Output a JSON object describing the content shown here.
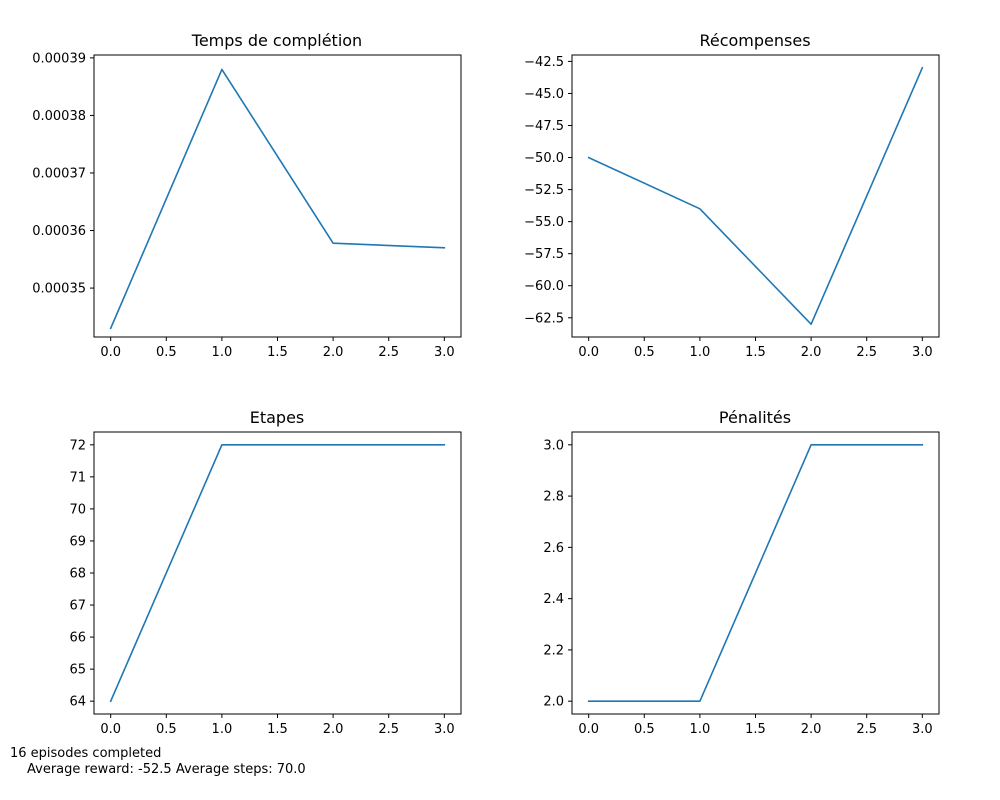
{
  "chart_data": [
    {
      "type": "line",
      "title": "Temps de complétion",
      "x": [
        0,
        1,
        2,
        3
      ],
      "series": [
        {
          "values": [
            0.000343,
            0.000388,
            0.0003578,
            0.000357
          ],
          "color": "#1f77b4"
        }
      ],
      "xlim": [
        -0.15,
        3.15
      ],
      "ylim": [
        0.0003415,
        0.0003905
      ],
      "xticks": [
        0.0,
        0.5,
        1.0,
        1.5,
        2.0,
        2.5,
        3.0
      ],
      "xtick_labels": [
        "0.0",
        "0.5",
        "1.0",
        "1.5",
        "2.0",
        "2.5",
        "3.0"
      ],
      "yticks": [
        0.00035,
        0.00036,
        0.00037,
        0.00038,
        0.00039
      ],
      "ytick_labels": [
        "0.00035",
        "0.00036",
        "0.00037",
        "0.00038",
        "0.00039"
      ],
      "grid": false
    },
    {
      "type": "line",
      "title": "Récompenses",
      "x": [
        0,
        1,
        2,
        3
      ],
      "series": [
        {
          "values": [
            -50,
            -54,
            -63,
            -43
          ],
          "color": "#1f77b4"
        }
      ],
      "xlim": [
        -0.15,
        3.15
      ],
      "ylim": [
        -64,
        -42
      ],
      "xticks": [
        0.0,
        0.5,
        1.0,
        1.5,
        2.0,
        2.5,
        3.0
      ],
      "xtick_labels": [
        "0.0",
        "0.5",
        "1.0",
        "1.5",
        "2.0",
        "2.5",
        "3.0"
      ],
      "yticks": [
        -62.5,
        -60,
        -57.5,
        -55,
        -52.5,
        -50,
        -47.5,
        -45,
        -42.5
      ],
      "ytick_labels": [
        "−62.5",
        "−60.0",
        "−57.5",
        "−55.0",
        "−52.5",
        "−50.0",
        "−47.5",
        "−45.0",
        "−42.5"
      ],
      "grid": false
    },
    {
      "type": "line",
      "title": "Etapes",
      "x": [
        0,
        1,
        2,
        3
      ],
      "series": [
        {
          "values": [
            64,
            72,
            72,
            72
          ],
          "color": "#1f77b4"
        }
      ],
      "xlim": [
        -0.15,
        3.15
      ],
      "ylim": [
        63.6,
        72.4
      ],
      "xticks": [
        0.0,
        0.5,
        1.0,
        1.5,
        2.0,
        2.5,
        3.0
      ],
      "xtick_labels": [
        "0.0",
        "0.5",
        "1.0",
        "1.5",
        "2.0",
        "2.5",
        "3.0"
      ],
      "yticks": [
        64,
        65,
        66,
        67,
        68,
        69,
        70,
        71,
        72
      ],
      "ytick_labels": [
        "64",
        "65",
        "66",
        "67",
        "68",
        "69",
        "70",
        "71",
        "72"
      ],
      "grid": false
    },
    {
      "type": "line",
      "title": "Pénalités",
      "x": [
        0,
        1,
        2,
        3
      ],
      "series": [
        {
          "values": [
            2,
            2,
            3,
            3
          ],
          "color": "#1f77b4"
        }
      ],
      "xlim": [
        -0.15,
        3.15
      ],
      "ylim": [
        1.95,
        3.05
      ],
      "xticks": [
        0.0,
        0.5,
        1.0,
        1.5,
        2.0,
        2.5,
        3.0
      ],
      "xtick_labels": [
        "0.0",
        "0.5",
        "1.0",
        "1.5",
        "2.0",
        "2.5",
        "3.0"
      ],
      "yticks": [
        2.0,
        2.2,
        2.4,
        2.6,
        2.8,
        3.0
      ],
      "ytick_labels": [
        "2.0",
        "2.2",
        "2.4",
        "2.6",
        "2.8",
        "3.0"
      ],
      "grid": false
    }
  ],
  "summary": {
    "line1": "16 episodes completed",
    "line2": "Average reward: -52.5 Average steps: 70.0"
  }
}
